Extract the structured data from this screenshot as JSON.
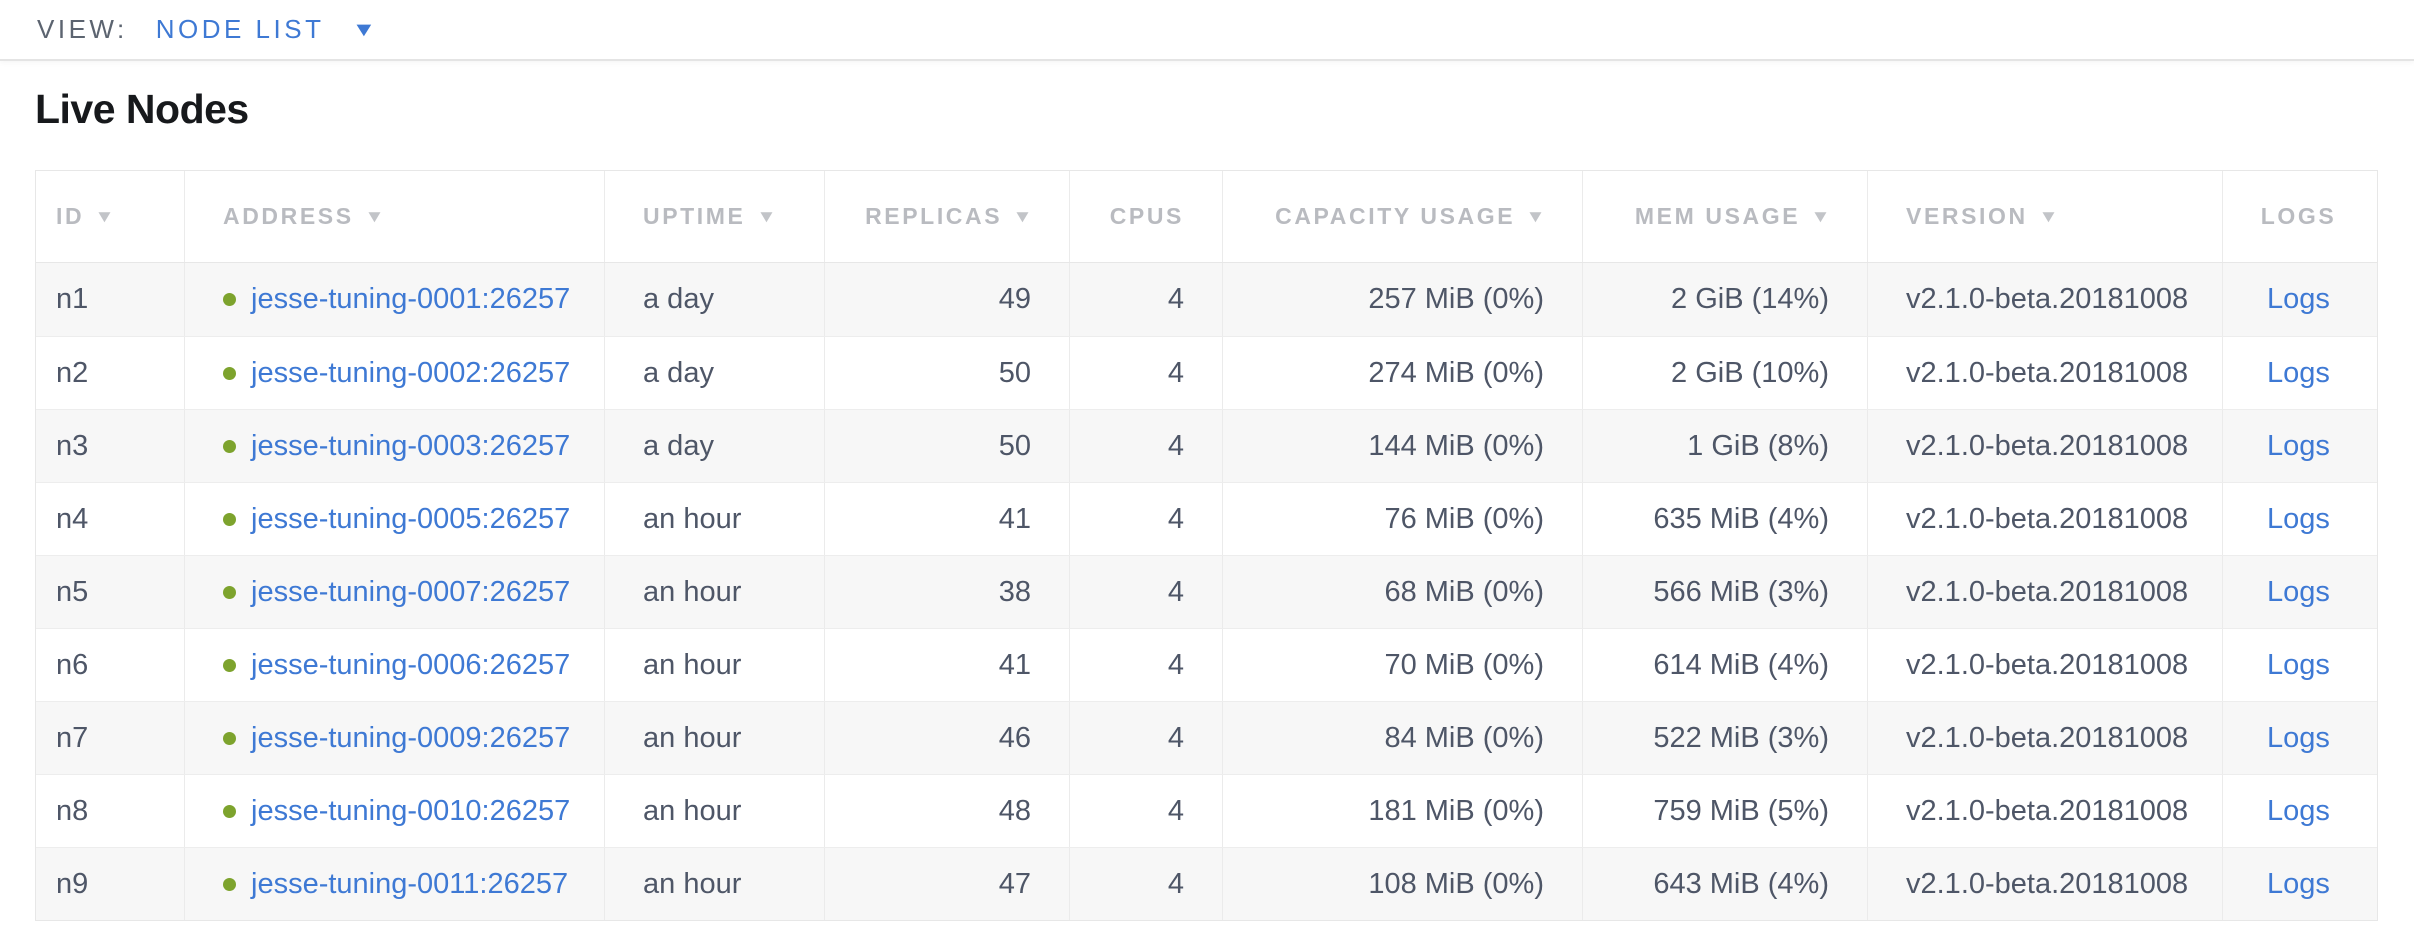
{
  "view_bar": {
    "label": "VIEW:",
    "selected": "NODE LIST"
  },
  "page": {
    "title": "Live Nodes"
  },
  "icons": {
    "sort_caret": "▼",
    "dropdown_caret": "▼",
    "live_dot": "node-live-green-dot"
  },
  "colors": {
    "link_blue": "#3e79d4",
    "live_green": "#7da32d",
    "body_text": "#4e5667",
    "header_gray": "#b9bbc0"
  },
  "table": {
    "columns": [
      {
        "key": "id",
        "label": "ID",
        "sortable": true,
        "align": "left"
      },
      {
        "key": "address",
        "label": "ADDRESS",
        "sortable": true,
        "align": "left"
      },
      {
        "key": "uptime",
        "label": "UPTIME",
        "sortable": true,
        "align": "left"
      },
      {
        "key": "replicas",
        "label": "REPLICAS",
        "sortable": true,
        "align": "right"
      },
      {
        "key": "cpus",
        "label": "CPUS",
        "sortable": false,
        "align": "right"
      },
      {
        "key": "capacity",
        "label": "CAPACITY USAGE",
        "sortable": true,
        "align": "right"
      },
      {
        "key": "mem",
        "label": "MEM USAGE",
        "sortable": true,
        "align": "right"
      },
      {
        "key": "version",
        "label": "VERSION",
        "sortable": true,
        "align": "left"
      },
      {
        "key": "logs",
        "label": "LOGS",
        "sortable": false,
        "align": "center"
      }
    ],
    "rows": [
      {
        "id": "n1",
        "status": "live",
        "address": "jesse-tuning-0001:26257",
        "uptime": "a day",
        "replicas": "49",
        "cpus": "4",
        "capacity": "257 MiB (0%)",
        "mem": "2 GiB (14%)",
        "version": "v2.1.0-beta.20181008",
        "logs": "Logs"
      },
      {
        "id": "n2",
        "status": "live",
        "address": "jesse-tuning-0002:26257",
        "uptime": "a day",
        "replicas": "50",
        "cpus": "4",
        "capacity": "274 MiB (0%)",
        "mem": "2 GiB (10%)",
        "version": "v2.1.0-beta.20181008",
        "logs": "Logs"
      },
      {
        "id": "n3",
        "status": "live",
        "address": "jesse-tuning-0003:26257",
        "uptime": "a day",
        "replicas": "50",
        "cpus": "4",
        "capacity": "144 MiB (0%)",
        "mem": "1 GiB (8%)",
        "version": "v2.1.0-beta.20181008",
        "logs": "Logs"
      },
      {
        "id": "n4",
        "status": "live",
        "address": "jesse-tuning-0005:26257",
        "uptime": "an hour",
        "replicas": "41",
        "cpus": "4",
        "capacity": "76 MiB (0%)",
        "mem": "635 MiB (4%)",
        "version": "v2.1.0-beta.20181008",
        "logs": "Logs"
      },
      {
        "id": "n5",
        "status": "live",
        "address": "jesse-tuning-0007:26257",
        "uptime": "an hour",
        "replicas": "38",
        "cpus": "4",
        "capacity": "68 MiB (0%)",
        "mem": "566 MiB (3%)",
        "version": "v2.1.0-beta.20181008",
        "logs": "Logs"
      },
      {
        "id": "n6",
        "status": "live",
        "address": "jesse-tuning-0006:26257",
        "uptime": "an hour",
        "replicas": "41",
        "cpus": "4",
        "capacity": "70 MiB (0%)",
        "mem": "614 MiB (4%)",
        "version": "v2.1.0-beta.20181008",
        "logs": "Logs"
      },
      {
        "id": "n7",
        "status": "live",
        "address": "jesse-tuning-0009:26257",
        "uptime": "an hour",
        "replicas": "46",
        "cpus": "4",
        "capacity": "84 MiB (0%)",
        "mem": "522 MiB (3%)",
        "version": "v2.1.0-beta.20181008",
        "logs": "Logs"
      },
      {
        "id": "n8",
        "status": "live",
        "address": "jesse-tuning-0010:26257",
        "uptime": "an hour",
        "replicas": "48",
        "cpus": "4",
        "capacity": "181 MiB (0%)",
        "mem": "759 MiB (5%)",
        "version": "v2.1.0-beta.20181008",
        "logs": "Logs"
      },
      {
        "id": "n9",
        "status": "live",
        "address": "jesse-tuning-0011:26257",
        "uptime": "an hour",
        "replicas": "47",
        "cpus": "4",
        "capacity": "108 MiB (0%)",
        "mem": "643 MiB (4%)",
        "version": "v2.1.0-beta.20181008",
        "logs": "Logs"
      }
    ]
  }
}
